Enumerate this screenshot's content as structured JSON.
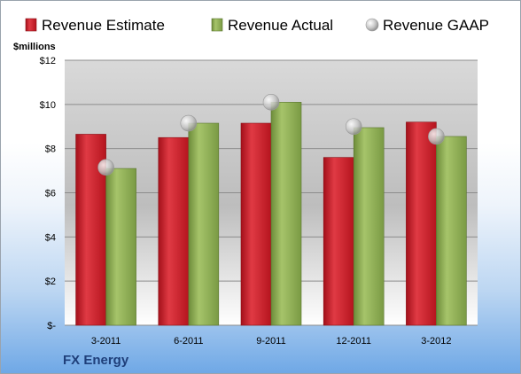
{
  "brand": "FX Energy",
  "colors": {
    "estimate": "#c8202a",
    "actual": "#8aab4f",
    "gaap": "#c0c0c0"
  },
  "chart_data": {
    "type": "bar",
    "ylabel": "$millions",
    "ylim": [
      0,
      12
    ],
    "yticks": [
      0,
      2,
      4,
      6,
      8,
      10,
      12
    ],
    "ytick_labels": [
      "$-",
      "$2",
      "$4",
      "$6",
      "$8",
      "$10",
      "$12"
    ],
    "categories": [
      "3-2011",
      "6-2011",
      "9-2011",
      "12-2011",
      "3-2012"
    ],
    "legend_position": "top",
    "grid": true,
    "series": [
      {
        "name": "Revenue Estimate",
        "kind": "bar",
        "values": [
          8.65,
          8.5,
          9.15,
          7.6,
          9.2
        ]
      },
      {
        "name": "Revenue Actual",
        "kind": "bar",
        "values": [
          7.1,
          9.15,
          10.1,
          8.95,
          8.55
        ]
      },
      {
        "name": "Revenue GAAP",
        "kind": "marker",
        "values": [
          7.15,
          9.15,
          10.1,
          9.0,
          8.55
        ]
      }
    ]
  }
}
